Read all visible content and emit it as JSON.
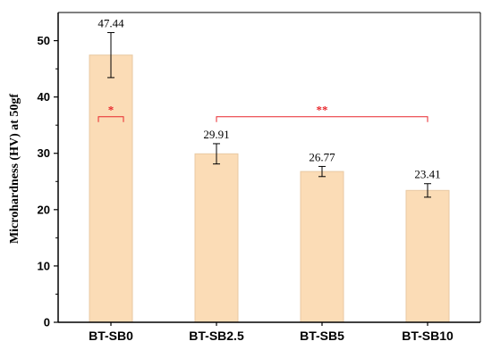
{
  "chart_data": {
    "type": "bar",
    "categories": [
      "BT-SB0",
      "BT-SB2.5",
      "BT-SB5",
      "BT-SB10"
    ],
    "values": [
      47.44,
      29.91,
      26.77,
      23.41
    ],
    "errors": [
      4.0,
      1.8,
      0.9,
      1.2
    ],
    "data_labels": [
      "47.44",
      "29.91",
      "26.77",
      "23.41"
    ],
    "title": "",
    "xlabel": "",
    "ylabel": "Microhardness (HV) at 50gf",
    "ylim": [
      0,
      55
    ],
    "yticks": [
      0,
      10,
      20,
      30,
      40,
      50
    ],
    "grid": false,
    "bar_color": "#fbdcb6",
    "bar_edge_color": "#e8c9a3",
    "significance": [
      {
        "label": "*",
        "from": 0,
        "to": 0,
        "y": 36.5,
        "color": "#e8262b"
      },
      {
        "label": "**",
        "from": 1,
        "to": 3,
        "y": 36.5,
        "color": "#e8262b"
      }
    ]
  }
}
